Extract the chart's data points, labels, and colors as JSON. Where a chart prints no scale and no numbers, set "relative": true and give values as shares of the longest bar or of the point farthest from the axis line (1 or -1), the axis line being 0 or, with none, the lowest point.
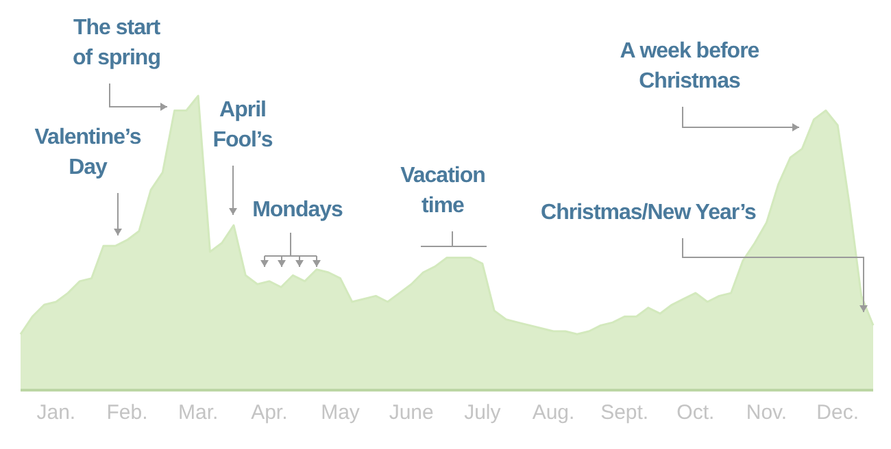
{
  "chart_data": {
    "type": "area",
    "relative": true,
    "color": "#d3e9bd",
    "categories": [
      null,
      null,
      null,
      "Jan.",
      null,
      null,
      null,
      null,
      null,
      "Feb.",
      null,
      null,
      null,
      null,
      null,
      "Mar.",
      null,
      null,
      null,
      null,
      null,
      "Apr.",
      null,
      null,
      null,
      null,
      null,
      "May",
      null,
      null,
      null,
      null,
      null,
      "June",
      null,
      null,
      null,
      null,
      null,
      "July",
      null,
      null,
      null,
      null,
      null,
      "Aug.",
      null,
      null,
      null,
      null,
      null,
      "Sept.",
      null,
      null,
      null,
      null,
      null,
      "Oct.",
      null,
      null,
      null,
      null,
      null,
      "Nov.",
      null,
      null,
      null,
      null,
      null,
      "Dec.",
      null,
      null,
      null
    ],
    "values": [
      0.19,
      0.25,
      0.29,
      0.3,
      0.33,
      0.37,
      0.38,
      0.49,
      0.49,
      0.51,
      0.54,
      0.68,
      0.74,
      0.95,
      0.95,
      1,
      0.47,
      0.5,
      0.56,
      0.39,
      0.36,
      0.37,
      0.35,
      0.39,
      0.37,
      0.41,
      0.4,
      0.38,
      0.3,
      0.31,
      0.32,
      0.3,
      0.33,
      0.36,
      0.4,
      0.42,
      0.45,
      0.45,
      0.45,
      0.43,
      0.27,
      0.24,
      0.23,
      0.22,
      0.21,
      0.2,
      0.2,
      0.19,
      0.2,
      0.22,
      0.23,
      0.25,
      0.25,
      0.28,
      0.26,
      0.29,
      0.31,
      0.33,
      0.3,
      0.32,
      0.33,
      0.44,
      0.5,
      0.57,
      0.7,
      0.79,
      0.82,
      0.92,
      0.95,
      0.9,
      0.63,
      0.32,
      0.22
    ],
    "annotations": [
      "Valentine’s Day",
      "The start of spring",
      "April Fool’s",
      "Mondays",
      "Vacation time",
      "Christmas/New Year’s",
      "A week before Christmas"
    ]
  }
}
